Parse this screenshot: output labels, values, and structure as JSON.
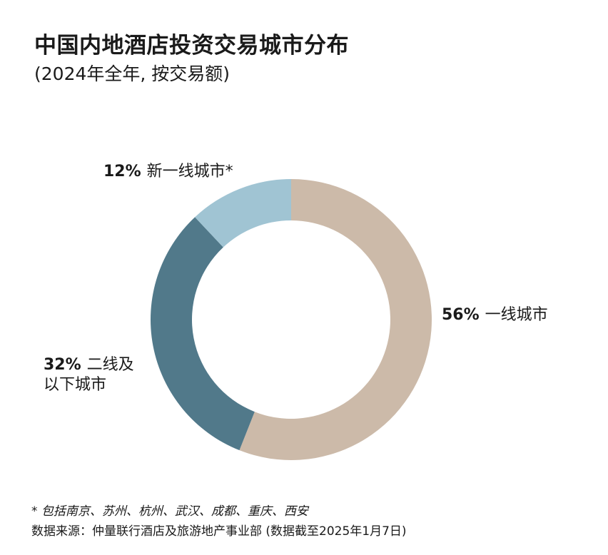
{
  "title": "中国内地酒店投资交易城市分布",
  "subtitle": "(2024年全年, 按交易额)",
  "chart_data": {
    "type": "pie",
    "donut": true,
    "title": "中国内地酒店投资交易城市分布",
    "subtitle": "(2024年全年, 按交易额)",
    "slices": [
      {
        "label": "一线城市",
        "value": 56,
        "value_label": "56%",
        "color": "#ccbaa9"
      },
      {
        "label": "二线及以下城市",
        "label_line1": "二线及",
        "label_line2": "以下城市",
        "value": 32,
        "value_label": "32%",
        "color": "#51798a"
      },
      {
        "label": "新一线城市*",
        "value": 12,
        "value_label": "12%",
        "color": "#a0c4d3"
      }
    ]
  },
  "footnote": "* 包括南京、苏州、杭州、武汉、成都、重庆、西安",
  "source": "数据来源：仲量联行酒店及旅游地产事业部 (数据截至2025年1月7日)"
}
